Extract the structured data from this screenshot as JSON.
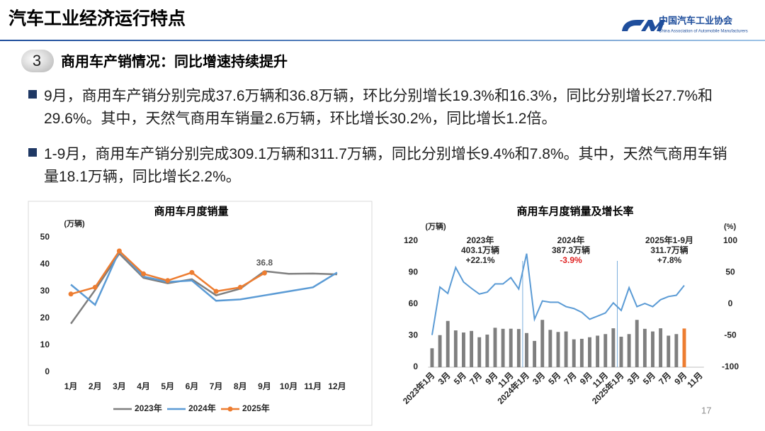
{
  "header": {
    "title": "汽车工业经济运行特点",
    "org_cn": "中国汽车工业协会",
    "org_en": "China Association of Automobile Manufacturers"
  },
  "section": {
    "number": "3",
    "heading": "商用车产销情况：同比增速持续提升"
  },
  "bullets": [
    "9月，商用车产销分别完成37.6万辆和36.8万辆，环比分别增长19.3%和16.3%，同比分别增长27.7%和29.6%。其中，天然气商用车销量2.6万辆，环比增长30.2%，同比增长1.2倍。",
    "1-9月，商用车产销分别完成309.1万辆和311.7万辆，同比分别增长9.4%和7.8%。其中，天然气商用车销量18.1万辆，同比增长2.2%。"
  ],
  "page_number": "17",
  "chart_data": [
    {
      "type": "line",
      "title": "商用车月度销量",
      "y_label": "(万辆)",
      "categories": [
        "1月",
        "2月",
        "3月",
        "4月",
        "5月",
        "6月",
        "7月",
        "8月",
        "9月",
        "10月",
        "11月",
        "12月"
      ],
      "ylim": [
        0,
        50
      ],
      "yticks": [
        0,
        10,
        20,
        30,
        40,
        50
      ],
      "grid": false,
      "legend": "bottom",
      "series": [
        {
          "name": "2023年",
          "color": "#7f7f7f",
          "marker": false,
          "values": [
            18,
            30.5,
            44,
            35,
            33,
            34.5,
            28.5,
            31,
            37.5,
            36.5,
            36.6,
            36.3
          ]
        },
        {
          "name": "2024年",
          "color": "#5b9bd5",
          "marker": false,
          "values": [
            32.5,
            25,
            45,
            35.5,
            33.5,
            34,
            26.5,
            27,
            28.5,
            30,
            31.5,
            37
          ]
        },
        {
          "name": "2025年",
          "color": "#ed7d31",
          "marker": true,
          "labeled_index": [
            8
          ],
          "values": [
            29,
            31.5,
            45,
            36.5,
            34,
            37,
            30,
            31.5,
            36.8,
            null,
            null,
            null
          ]
        }
      ]
    },
    {
      "type": "combo",
      "title": "商用车月度销量及增长率",
      "y_label": "(万辆)",
      "y2_label": "(%)",
      "categories": [
        "2023年1月",
        null,
        "3月",
        null,
        "5月",
        null,
        "7月",
        null,
        "9月",
        null,
        "11月",
        null,
        "2024年1月",
        null,
        "3月",
        null,
        "5月",
        null,
        "7月",
        null,
        "9月",
        null,
        "11月",
        null,
        "2025年1月",
        null,
        "3月",
        null,
        "5月",
        null,
        "7月",
        null,
        "9月",
        null,
        "11月"
      ],
      "ylim": [
        0,
        120
      ],
      "yticks": [
        0,
        30,
        60,
        90,
        120
      ],
      "y2lim": [
        -100,
        100
      ],
      "y2ticks": [
        -100,
        -50,
        0,
        50,
        100
      ],
      "grid": false,
      "series": [
        {
          "type": "bar",
          "color": "#7f7f7f",
          "colors": [
            "#7f7f7f",
            "#7f7f7f",
            "#7f7f7f",
            "#7f7f7f",
            "#7f7f7f",
            "#7f7f7f",
            "#7f7f7f",
            "#7f7f7f",
            "#7f7f7f",
            "#7f7f7f",
            "#7f7f7f",
            "#7f7f7f",
            "#7f7f7f",
            "#7f7f7f",
            "#7f7f7f",
            "#7f7f7f",
            "#7f7f7f",
            "#7f7f7f",
            "#7f7f7f",
            "#7f7f7f",
            "#7f7f7f",
            "#7f7f7f",
            "#7f7f7f",
            "#7f7f7f",
            "#7f7f7f",
            "#7f7f7f",
            "#7f7f7f",
            "#7f7f7f",
            "#7f7f7f",
            "#7f7f7f",
            "#7f7f7f",
            "#7f7f7f",
            "#ed7d31",
            null,
            null
          ],
          "values": [
            18,
            30.5,
            44,
            35,
            33,
            34.5,
            28.5,
            31,
            37.5,
            36.5,
            36.6,
            36.3,
            32.5,
            25,
            45,
            35.5,
            33.5,
            34,
            26.5,
            27,
            28.5,
            30,
            31.5,
            37,
            29,
            31.5,
            45,
            36.5,
            34,
            37,
            30,
            31.5,
            36.8,
            null,
            null
          ]
        },
        {
          "type": "line",
          "axis": "y2",
          "color": "#5b9bd5",
          "values": [
            -49,
            27,
            17,
            58,
            35,
            25,
            16,
            19,
            32,
            32,
            42,
            24,
            80,
            -24,
            5,
            3,
            3,
            -4,
            -7,
            -13,
            -24,
            -19,
            -14,
            2,
            -10,
            26,
            -4,
            1,
            -4,
            7,
            12,
            14,
            29.6,
            null,
            null
          ]
        }
      ],
      "annotations": [
        {
          "period": "2023年",
          "total": "403.1万辆",
          "growth": "+22.1%",
          "growth_color": "#262626"
        },
        {
          "period": "2024年",
          "total": "387.3万辆",
          "growth": "-3.9%",
          "growth_color": "#e02020"
        },
        {
          "period": "2025年1-9月",
          "total": "311.7万辆",
          "growth": "+7.8%",
          "growth_color": "#262626"
        }
      ]
    }
  ]
}
